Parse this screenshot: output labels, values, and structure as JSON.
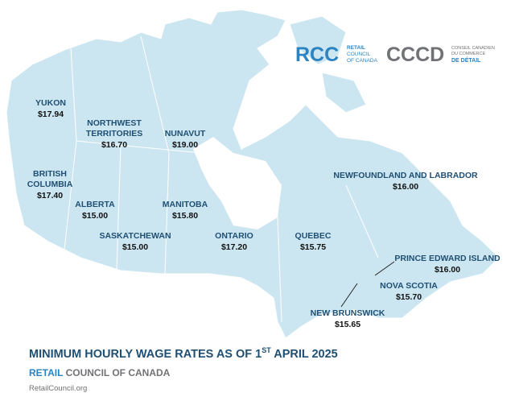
{
  "logos": {
    "rcc": {
      "mark": "RCC",
      "lines": [
        "RETAIL",
        "COUNCIL",
        "OF CANADA"
      ]
    },
    "cccd": {
      "mark": "CCCD",
      "lines": [
        "CONSEIL CANADIEN",
        "DU COMMERCE",
        "DE DÉTAIL"
      ]
    }
  },
  "regions": [
    {
      "name": [
        "YUKON"
      ],
      "wage": "$17.94"
    },
    {
      "name": [
        "NORTHWEST",
        "TERRITORIES"
      ],
      "wage": "$16.70"
    },
    {
      "name": [
        "NUNAVUT"
      ],
      "wage": "$19.00"
    },
    {
      "name": [
        "BRITISH",
        "COLUMBIA"
      ],
      "wage": "$17.40"
    },
    {
      "name": [
        "ALBERTA"
      ],
      "wage": "$15.00"
    },
    {
      "name": [
        "MANITOBA"
      ],
      "wage": "$15.80"
    },
    {
      "name": [
        "SASKATCHEWAN"
      ],
      "wage": "$15.00"
    },
    {
      "name": [
        "ONTARIO"
      ],
      "wage": "$17.20"
    },
    {
      "name": [
        "QUEBEC"
      ],
      "wage": "$15.75"
    },
    {
      "name": [
        "NEWFOUNDLAND AND LABRADOR"
      ],
      "wage": "$16.00"
    },
    {
      "name": [
        "PRINCE EDWARD ISLAND"
      ],
      "wage": "$16.00"
    },
    {
      "name": [
        "NOVA SCOTIA"
      ],
      "wage": "$15.70"
    },
    {
      "name": [
        "NEW BRUNSWICK"
      ],
      "wage": "$15.65"
    }
  ],
  "title": {
    "main": "MINIMUM HOURLY WAGE RATES AS OF 1",
    "sup": "ST",
    "rest": " APRIL 2025"
  },
  "footer": {
    "brand_a": "RETAIL",
    "brand_b": " COUNCIL OF CANADA",
    "url": "RetailCouncil.org"
  }
}
